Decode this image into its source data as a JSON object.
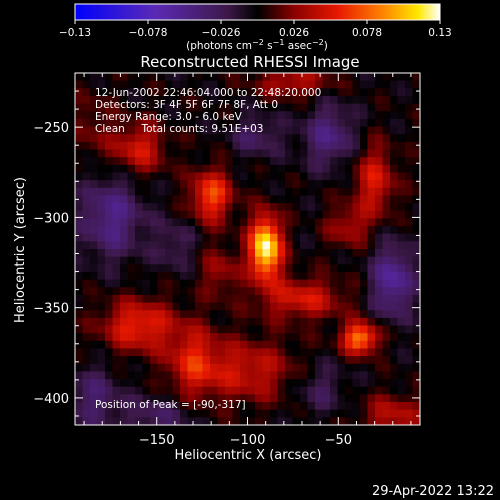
{
  "chart_data": {
    "type": "heatmap",
    "title": "Reconstructed RHESSI Image",
    "xlabel": "Heliocentric X (arcsec)",
    "ylabel": "Heliocentric Y (arcsec)",
    "xlim": [
      -195,
      -5
    ],
    "ylim": [
      -415,
      -220
    ],
    "x_ticks": [
      -150,
      -100,
      -50
    ],
    "y_ticks": [
      -250,
      -300,
      -350,
      -400
    ],
    "colorbar": {
      "ticks": [
        -0.13,
        -0.078,
        -0.026,
        0.026,
        0.078,
        0.13
      ],
      "tick_labels": [
        "−0.13",
        "−0.078",
        "−0.026",
        "0.026",
        "0.078",
        "0.13"
      ],
      "vmin": -0.13,
      "vmax": 0.13,
      "unit_parts": [
        "(photons cm",
        "−2",
        " s",
        "−1",
        " asec",
        "−2",
        ")"
      ]
    },
    "annotations": [
      "12-Jun-2002 22:46:04.000 to 22:48:20.000",
      "Detectors: 3F 4F 5F 6F 7F 8F, Att 0",
      "Energy Range: 3.0 - 6.0 keV",
      "Clean     Total counts: 9.51E+03"
    ],
    "peak_annotation": "Position of Peak = [-90,-317]",
    "peak": [
      -90,
      -317
    ],
    "blobs": [
      {
        "x": -90,
        "y": -317,
        "value": 0.13,
        "sx": 6,
        "sy": 12
      },
      {
        "x": -38,
        "y": -367,
        "value": 0.09,
        "sx": 7,
        "sy": 6
      },
      {
        "x": -120,
        "y": -288,
        "value": 0.07,
        "sx": 8,
        "sy": 10
      },
      {
        "x": -160,
        "y": -262,
        "value": 0.05,
        "sx": 10,
        "sy": 10
      },
      {
        "x": -160,
        "y": -360,
        "value": 0.06,
        "sx": 14,
        "sy": 10
      },
      {
        "x": -130,
        "y": -380,
        "value": 0.05,
        "sx": 10,
        "sy": 14
      },
      {
        "x": -100,
        "y": -385,
        "value": 0.045,
        "sx": 18,
        "sy": 12
      },
      {
        "x": -70,
        "y": -345,
        "value": 0.05,
        "sx": 16,
        "sy": 8
      },
      {
        "x": -30,
        "y": -280,
        "value": 0.05,
        "sx": 8,
        "sy": 14
      },
      {
        "x": -20,
        "y": -410,
        "value": 0.04,
        "sx": 12,
        "sy": 8
      },
      {
        "x": -45,
        "y": -305,
        "value": 0.035,
        "sx": 8,
        "sy": 8
      },
      {
        "x": -75,
        "y": -225,
        "value": 0.04,
        "sx": 14,
        "sy": 6
      },
      {
        "x": -115,
        "y": -330,
        "value": 0.03,
        "sx": 8,
        "sy": 10
      },
      {
        "x": -185,
        "y": -250,
        "value": 0.02,
        "sx": 8,
        "sy": 14
      },
      {
        "x": -175,
        "y": -300,
        "value": -0.05,
        "sx": 12,
        "sy": 16
      },
      {
        "x": -55,
        "y": -255,
        "value": -0.045,
        "sx": 10,
        "sy": 12
      },
      {
        "x": -20,
        "y": -335,
        "value": -0.06,
        "sx": 8,
        "sy": 14
      },
      {
        "x": -150,
        "y": -410,
        "value": -0.03,
        "sx": 14,
        "sy": 8
      },
      {
        "x": -95,
        "y": -255,
        "value": -0.03,
        "sx": 10,
        "sy": 8
      },
      {
        "x": -60,
        "y": -395,
        "value": -0.025,
        "sx": 10,
        "sy": 10
      },
      {
        "x": -140,
        "y": -315,
        "value": -0.025,
        "sx": 8,
        "sy": 10
      },
      {
        "x": -185,
        "y": -400,
        "value": -0.035,
        "sx": 10,
        "sy": 12
      }
    ]
  },
  "footer": {
    "timestamp": "29-Apr-2022 13:22"
  }
}
